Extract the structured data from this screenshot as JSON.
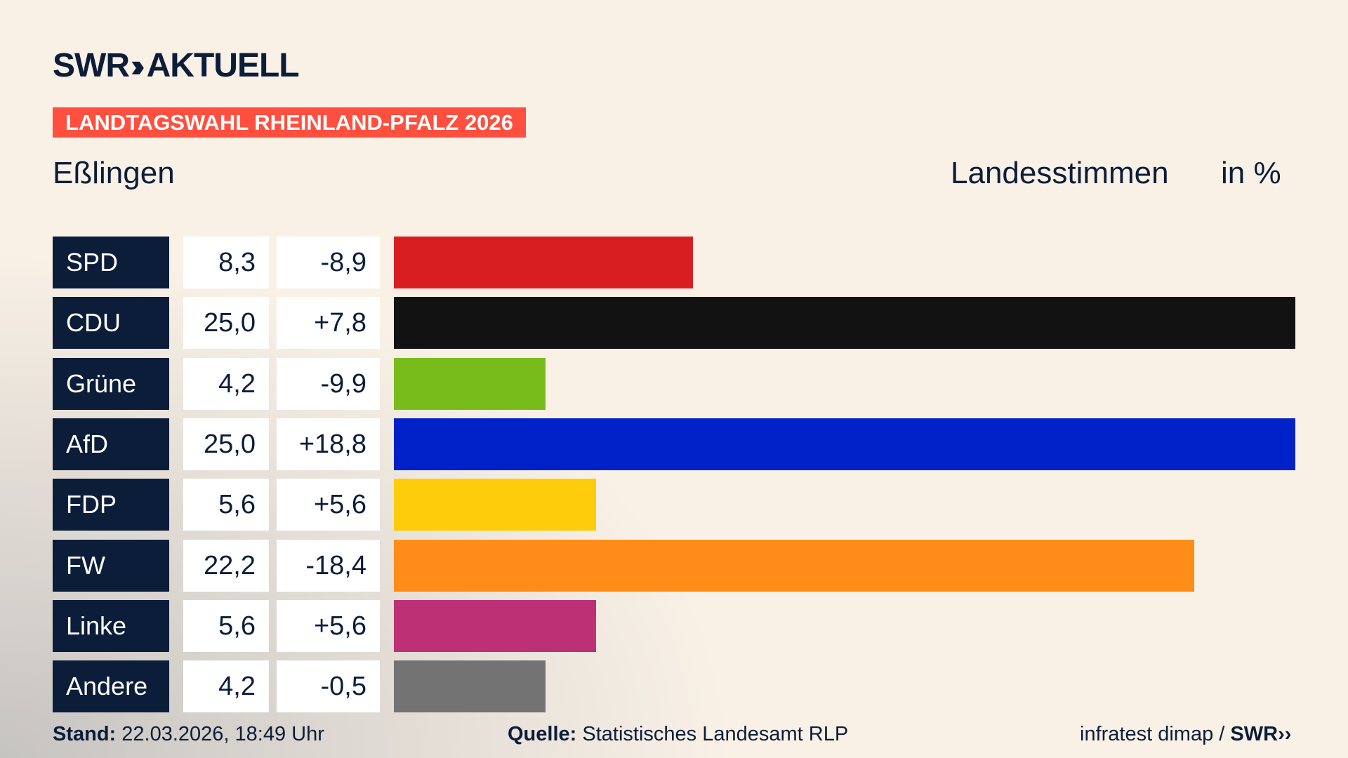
{
  "header": {
    "logo_text": "SWR",
    "logo_suffix": "AKTUELL",
    "banner": "LANDTAGSWAHL RHEINLAND-PFALZ 2026",
    "region": "Eßlingen",
    "measure": "Landesstimmen",
    "unit": "in %"
  },
  "chart_data": {
    "type": "bar",
    "orientation": "horizontal",
    "xlim": [
      0,
      25
    ],
    "categories": [
      "SPD",
      "CDU",
      "Grüne",
      "AfD",
      "FDP",
      "FW",
      "Linke",
      "Andere"
    ],
    "values": [
      "8,3",
      "25,0",
      "4,2",
      "25,0",
      "5,6",
      "22,2",
      "5,6",
      "4,2"
    ],
    "numeric_values": [
      8.3,
      25.0,
      4.2,
      25.0,
      5.6,
      22.2,
      5.6,
      4.2
    ],
    "differences": [
      "-8,9",
      "+7,8",
      "-9,9",
      "+18,8",
      "+5,6",
      "-18,4",
      "+5,6",
      "-0,5"
    ],
    "colors": [
      "#d81e20",
      "#121212",
      "#78bc1b",
      "#0021c8",
      "#ffcc0b",
      "#ff8d17",
      "#bd3075",
      "#737373"
    ]
  },
  "footer": {
    "stand_label": "Stand:",
    "stand_value": "22.03.2026, 18:49 Uhr",
    "source_label": "Quelle:",
    "source_value": "Statistisches Landesamt RLP",
    "credit": "infratest dimap /",
    "credit_logo": "SWR"
  }
}
